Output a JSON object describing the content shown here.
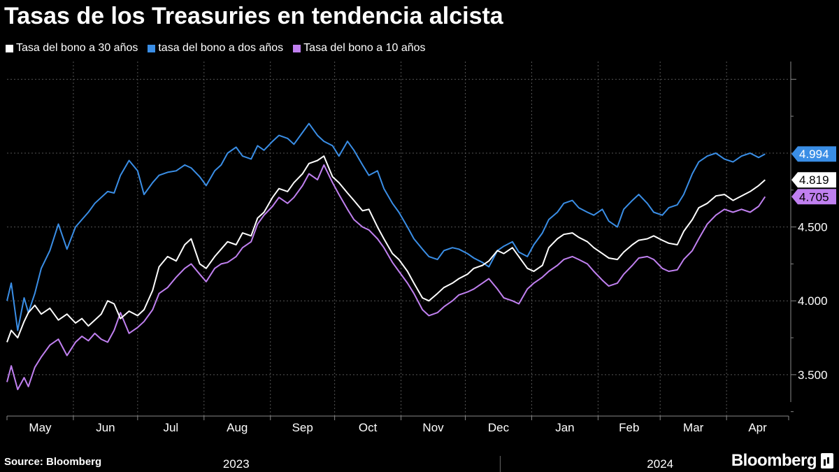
{
  "title": "Tasas de los Treasuries en tendencia alcista",
  "source": "Source: Bloomberg",
  "brand": "Bloomberg",
  "chart_data": {
    "type": "line",
    "title": "Tasas de los Treasuries en tendencia alcista",
    "xlabel": "",
    "ylabel": "",
    "ylim": [
      3.22,
      5.62
    ],
    "yticks": [
      "3.500",
      "4.000",
      "4.500"
    ],
    "ytick_values": [
      3.5,
      4.0,
      4.5
    ],
    "grid": true,
    "legend_position": "top-left",
    "x_month_labels": [
      "May",
      "Jun",
      "Jul",
      "Aug",
      "Sep",
      "Oct",
      "Nov",
      "Dec",
      "Jan",
      "Feb",
      "Mar",
      "Apr"
    ],
    "x_year_labels": [
      "2023",
      "2024"
    ],
    "series": [
      {
        "name": "Tasa del bono a 30 años",
        "color": "#ffffff",
        "last_value": "4.819",
        "x": [
          0,
          2,
          5,
          8,
          10,
          13,
          16,
          20,
          24,
          28,
          32,
          35,
          38,
          41,
          44,
          47,
          50,
          53,
          57,
          61,
          64,
          68,
          71,
          75,
          79,
          83,
          86,
          90,
          93,
          97,
          100,
          103,
          107,
          110,
          114,
          117,
          120,
          124,
          127,
          131,
          134,
          138,
          141,
          145,
          148,
          152,
          155,
          159,
          162,
          166,
          169,
          173,
          176,
          180,
          183,
          187,
          190,
          194,
          197,
          201,
          204,
          208,
          211,
          215,
          218,
          222,
          225,
          229,
          232,
          236,
          239,
          243,
          246,
          250,
          253,
          257,
          260,
          264,
          267,
          271,
          274,
          278,
          281,
          285,
          288,
          292,
          295,
          299,
          302,
          306,
          309,
          313,
          316,
          320,
          323,
          327,
          331,
          335,
          339,
          343,
          347,
          351,
          354
        ],
        "values": [
          3.72,
          3.8,
          3.75,
          3.86,
          3.92,
          3.97,
          3.91,
          3.95,
          3.87,
          3.91,
          3.85,
          3.88,
          3.83,
          3.87,
          3.91,
          4.0,
          3.98,
          3.88,
          3.93,
          3.9,
          3.94,
          4.07,
          4.23,
          4.3,
          4.27,
          4.38,
          4.42,
          4.25,
          4.22,
          4.3,
          4.35,
          4.4,
          4.38,
          4.46,
          4.44,
          4.56,
          4.6,
          4.7,
          4.76,
          4.74,
          4.8,
          4.86,
          4.93,
          4.95,
          4.98,
          4.84,
          4.8,
          4.73,
          4.68,
          4.61,
          4.62,
          4.5,
          4.42,
          4.32,
          4.28,
          4.2,
          4.12,
          4.02,
          4.0,
          4.05,
          4.09,
          4.12,
          4.15,
          4.18,
          4.22,
          4.24,
          4.27,
          4.34,
          4.32,
          4.36,
          4.3,
          4.22,
          4.2,
          4.24,
          4.36,
          4.42,
          4.45,
          4.46,
          4.43,
          4.4,
          4.36,
          4.32,
          4.29,
          4.28,
          4.33,
          4.38,
          4.41,
          4.42,
          4.44,
          4.41,
          4.39,
          4.38,
          4.47,
          4.55,
          4.63,
          4.66,
          4.71,
          4.72,
          4.68,
          4.71,
          4.74,
          4.78,
          4.819
        ]
      },
      {
        "name": "tasa del bono a dos años",
        "color": "#3a8ee6",
        "last_value": "4.994",
        "x": [
          0,
          2,
          5,
          8,
          10,
          13,
          16,
          20,
          24,
          28,
          32,
          35,
          38,
          41,
          44,
          47,
          50,
          53,
          57,
          61,
          64,
          68,
          71,
          75,
          79,
          83,
          86,
          90,
          93,
          97,
          100,
          103,
          107,
          110,
          114,
          117,
          120,
          124,
          127,
          131,
          134,
          138,
          141,
          145,
          148,
          152,
          155,
          159,
          162,
          166,
          169,
          173,
          176,
          180,
          183,
          187,
          190,
          194,
          197,
          201,
          204,
          208,
          211,
          215,
          218,
          222,
          225,
          229,
          232,
          236,
          239,
          243,
          246,
          250,
          253,
          257,
          260,
          264,
          267,
          271,
          274,
          278,
          281,
          285,
          288,
          292,
          295,
          299,
          302,
          306,
          309,
          313,
          316,
          320,
          323,
          327,
          331,
          335,
          339,
          343,
          347,
          351,
          354
        ],
        "values": [
          4.0,
          4.12,
          3.8,
          4.02,
          3.92,
          4.05,
          4.22,
          4.34,
          4.52,
          4.35,
          4.5,
          4.55,
          4.6,
          4.66,
          4.7,
          4.74,
          4.73,
          4.85,
          4.95,
          4.88,
          4.72,
          4.8,
          4.85,
          4.87,
          4.88,
          4.92,
          4.9,
          4.84,
          4.78,
          4.88,
          4.92,
          5.0,
          5.04,
          4.98,
          4.96,
          5.05,
          5.02,
          5.08,
          5.12,
          5.1,
          5.06,
          5.14,
          5.2,
          5.12,
          5.08,
          5.05,
          4.98,
          5.08,
          5.02,
          4.92,
          4.85,
          4.88,
          4.76,
          4.66,
          4.6,
          4.5,
          4.42,
          4.35,
          4.3,
          4.28,
          4.34,
          4.36,
          4.35,
          4.32,
          4.29,
          4.26,
          4.23,
          4.34,
          4.37,
          4.4,
          4.33,
          4.3,
          4.38,
          4.46,
          4.55,
          4.6,
          4.66,
          4.68,
          4.63,
          4.6,
          4.58,
          4.62,
          4.54,
          4.5,
          4.62,
          4.68,
          4.72,
          4.66,
          4.6,
          4.58,
          4.63,
          4.65,
          4.72,
          4.86,
          4.94,
          4.98,
          5.0,
          4.96,
          4.94,
          4.98,
          5.0,
          4.97,
          4.994
        ]
      },
      {
        "name": "Tasa del bono a 10 años",
        "color": "#c080f0",
        "last_value": "4.705",
        "x": [
          0,
          2,
          5,
          8,
          10,
          13,
          16,
          20,
          24,
          28,
          32,
          35,
          38,
          41,
          44,
          47,
          50,
          53,
          57,
          61,
          64,
          68,
          71,
          75,
          79,
          83,
          86,
          90,
          93,
          97,
          100,
          103,
          107,
          110,
          114,
          117,
          120,
          124,
          127,
          131,
          134,
          138,
          141,
          145,
          148,
          152,
          155,
          159,
          162,
          166,
          169,
          173,
          176,
          180,
          183,
          187,
          190,
          194,
          197,
          201,
          204,
          208,
          211,
          215,
          218,
          222,
          225,
          229,
          232,
          236,
          239,
          243,
          246,
          250,
          253,
          257,
          260,
          264,
          267,
          271,
          274,
          278,
          281,
          285,
          288,
          292,
          295,
          299,
          302,
          306,
          309,
          313,
          316,
          320,
          323,
          327,
          331,
          335,
          339,
          343,
          347,
          351,
          354
        ],
        "values": [
          3.45,
          3.56,
          3.4,
          3.48,
          3.42,
          3.55,
          3.62,
          3.7,
          3.74,
          3.63,
          3.72,
          3.76,
          3.73,
          3.78,
          3.74,
          3.72,
          3.8,
          3.92,
          3.78,
          3.82,
          3.86,
          3.94,
          4.05,
          4.09,
          4.16,
          4.22,
          4.25,
          4.18,
          4.13,
          4.22,
          4.25,
          4.26,
          4.3,
          4.36,
          4.4,
          4.52,
          4.58,
          4.64,
          4.7,
          4.66,
          4.7,
          4.78,
          4.86,
          4.82,
          4.92,
          4.8,
          4.72,
          4.62,
          4.55,
          4.5,
          4.48,
          4.42,
          4.36,
          4.26,
          4.2,
          4.12,
          4.05,
          3.94,
          3.9,
          3.92,
          3.96,
          4.0,
          4.04,
          4.06,
          4.08,
          4.12,
          4.15,
          4.08,
          4.02,
          4.0,
          3.98,
          4.08,
          4.12,
          4.16,
          4.2,
          4.24,
          4.28,
          4.3,
          4.28,
          4.25,
          4.2,
          4.14,
          4.1,
          4.12,
          4.18,
          4.24,
          4.29,
          4.3,
          4.28,
          4.22,
          4.2,
          4.21,
          4.28,
          4.34,
          4.42,
          4.52,
          4.58,
          4.62,
          4.6,
          4.62,
          4.6,
          4.64,
          4.705
        ]
      }
    ]
  }
}
